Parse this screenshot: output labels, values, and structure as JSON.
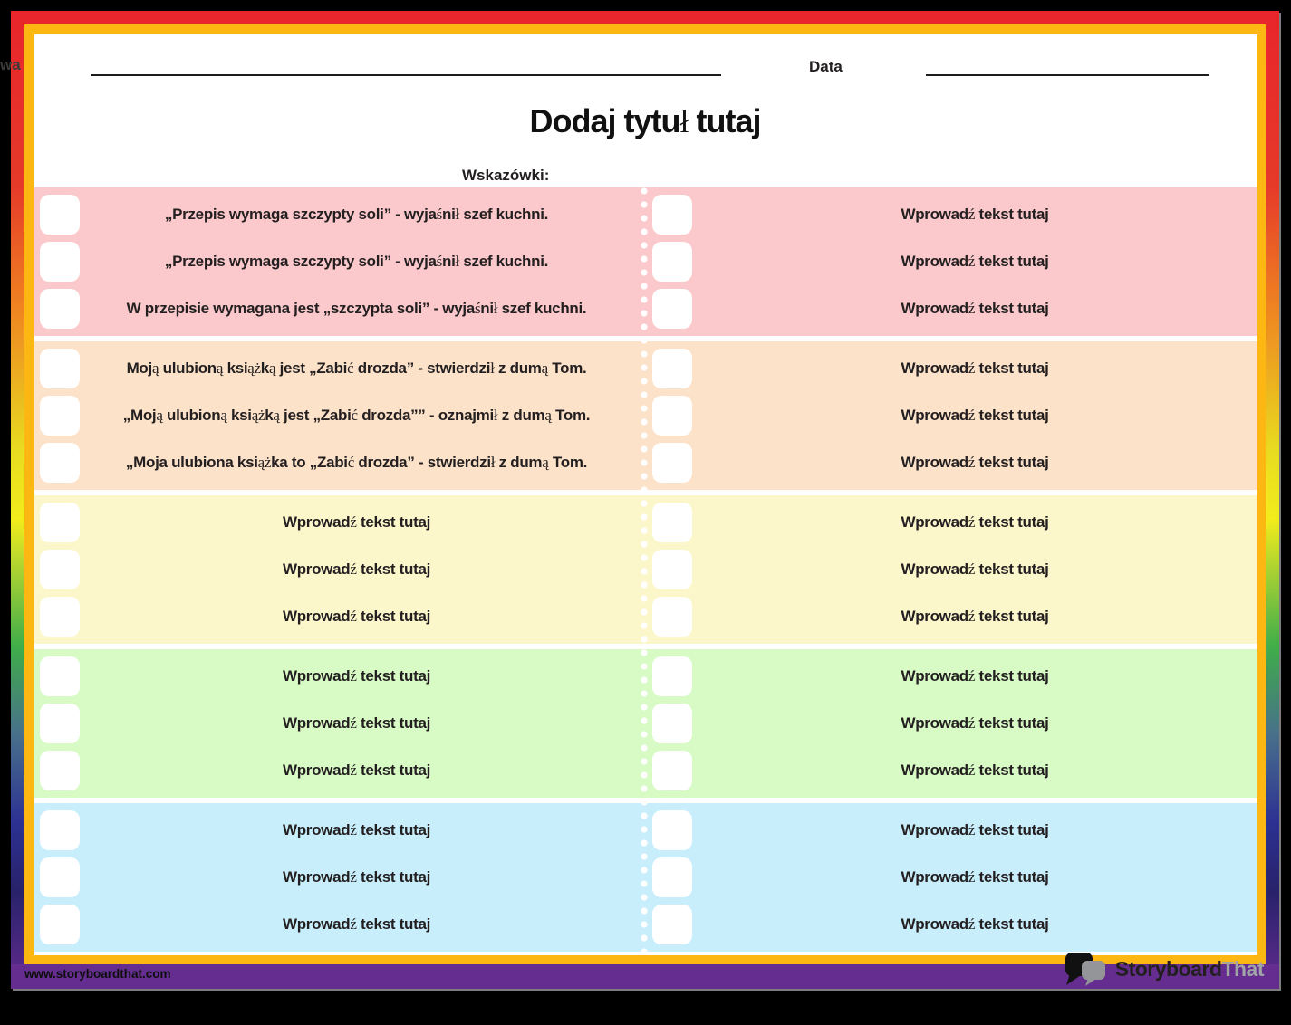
{
  "header": {
    "name_fragment": "wa",
    "date_label": "Data",
    "title": "Dodaj tytuł tutaj",
    "instructions_label": "Wskazówki:"
  },
  "bands": [
    {
      "bg": "#FBC9CB",
      "name": "pink",
      "rows": [
        {
          "left": "„Przepis wymaga szczypty soli” - wyjaśnił szef kuchni.",
          "right": "Wprowadź tekst tutaj"
        },
        {
          "left": "„Przepis wymaga szczypty soli” - wyjaśnił szef kuchni.",
          "right": "Wprowadź tekst tutaj"
        },
        {
          "left": "W przepisie wymagana jest „szczypta soli” - wyjaśnił szef kuchni.",
          "right": "Wprowadź tekst tutaj"
        }
      ]
    },
    {
      "bg": "#FCE2C9",
      "name": "peach",
      "rows": [
        {
          "left": "Moją ulubioną książką jest „Zabić drozda” - stwierdził z dumą Tom.",
          "right": "Wprowadź tekst tutaj"
        },
        {
          "left": "„Moją ulubioną książką jest „Zabić drozda”” - oznajmił z dumą Tom.",
          "right": "Wprowadź tekst tutaj"
        },
        {
          "left": "„Moja ulubiona książka to „Zabić drozda” - stwierdził z dumą Tom.",
          "right": "Wprowadź tekst tutaj"
        }
      ]
    },
    {
      "bg": "#FCF6CB",
      "name": "yellow",
      "rows": [
        {
          "left": "Wprowadź tekst tutaj",
          "right": "Wprowadź tekst tutaj"
        },
        {
          "left": "Wprowadź tekst tutaj",
          "right": "Wprowadź tekst tutaj"
        },
        {
          "left": "Wprowadź tekst tutaj",
          "right": "Wprowadź tekst tutaj"
        }
      ]
    },
    {
      "bg": "#D8FAC5",
      "name": "green",
      "rows": [
        {
          "left": "Wprowadź tekst tutaj",
          "right": "Wprowadź tekst tutaj"
        },
        {
          "left": "Wprowadź tekst tutaj",
          "right": "Wprowadź tekst tutaj"
        },
        {
          "left": "Wprowadź tekst tutaj",
          "right": "Wprowadź tekst tutaj"
        }
      ]
    },
    {
      "bg": "#C8EEFB",
      "name": "blue",
      "rows": [
        {
          "left": "Wprowadź tekst tutaj",
          "right": "Wprowadź tekst tutaj"
        },
        {
          "left": "Wprowadź tekst tutaj",
          "right": "Wprowadź tekst tutaj"
        },
        {
          "left": "Wprowadź tekst tutaj",
          "right": "Wprowadź tekst tutaj"
        }
      ]
    }
  ],
  "footer": {
    "url": "www.storyboardthat.com",
    "logo_part1": "Storyboard",
    "logo_part2": "That"
  },
  "colors": {
    "gold_frame": "#FCB712",
    "purple_footer": "#652D90",
    "top_border_red": "#E8252B",
    "text": "#231F20"
  }
}
